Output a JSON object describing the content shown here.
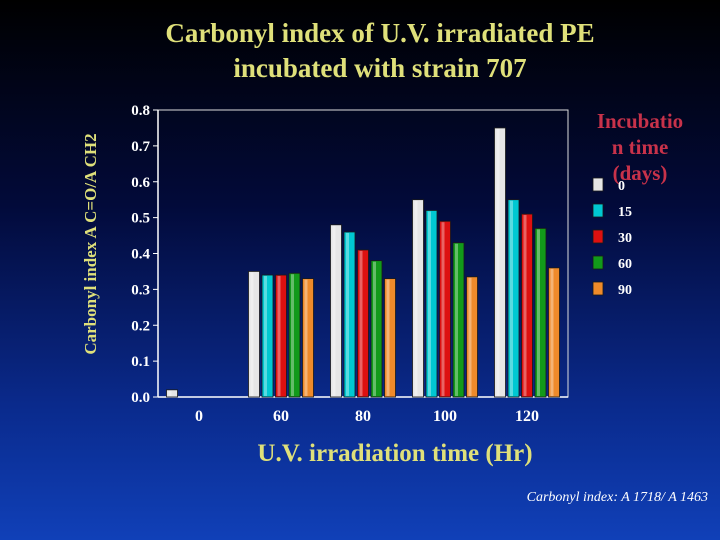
{
  "title_line1": "Carbonyl index of U.V. irradiated PE",
  "title_line2": "incubated with strain 707",
  "footnote": "Carbonyl index: A 1718/ A 1463",
  "chart_data": {
    "type": "bar",
    "title": "Carbonyl index of U.V. irradiated PE incubated with strain 707",
    "xlabel": "U.V. irradiation time (Hr)",
    "ylabel": "Carbonyl index A C=O/A CH2",
    "ylim": [
      0,
      0.8
    ],
    "yticks": [
      "0.0",
      "0.1",
      "0.2",
      "0.3",
      "0.4",
      "0.5",
      "0.6",
      "0.7",
      "0.8"
    ],
    "categories": [
      "0",
      "60",
      "80",
      "100",
      "120"
    ],
    "legend_title": "Incubation time (days)",
    "legend_title_lines": [
      "Incubatio",
      "n time",
      "(days)"
    ],
    "legend_position": "right",
    "series": [
      {
        "name": "0",
        "color": "#e6e6e6",
        "values": [
          0.02,
          0.35,
          0.48,
          0.55,
          0.75
        ]
      },
      {
        "name": "15",
        "color": "#00c8d2",
        "values": [
          0,
          0.34,
          0.46,
          0.52,
          0.55
        ]
      },
      {
        "name": "30",
        "color": "#dd1010",
        "values": [
          0,
          0.34,
          0.41,
          0.49,
          0.51
        ]
      },
      {
        "name": "60",
        "color": "#129a1a",
        "values": [
          0,
          0.345,
          0.38,
          0.43,
          0.47
        ]
      },
      {
        "name": "90",
        "color": "#ee8a2a",
        "values": [
          0,
          0.33,
          0.33,
          0.335,
          0.36
        ]
      }
    ]
  }
}
